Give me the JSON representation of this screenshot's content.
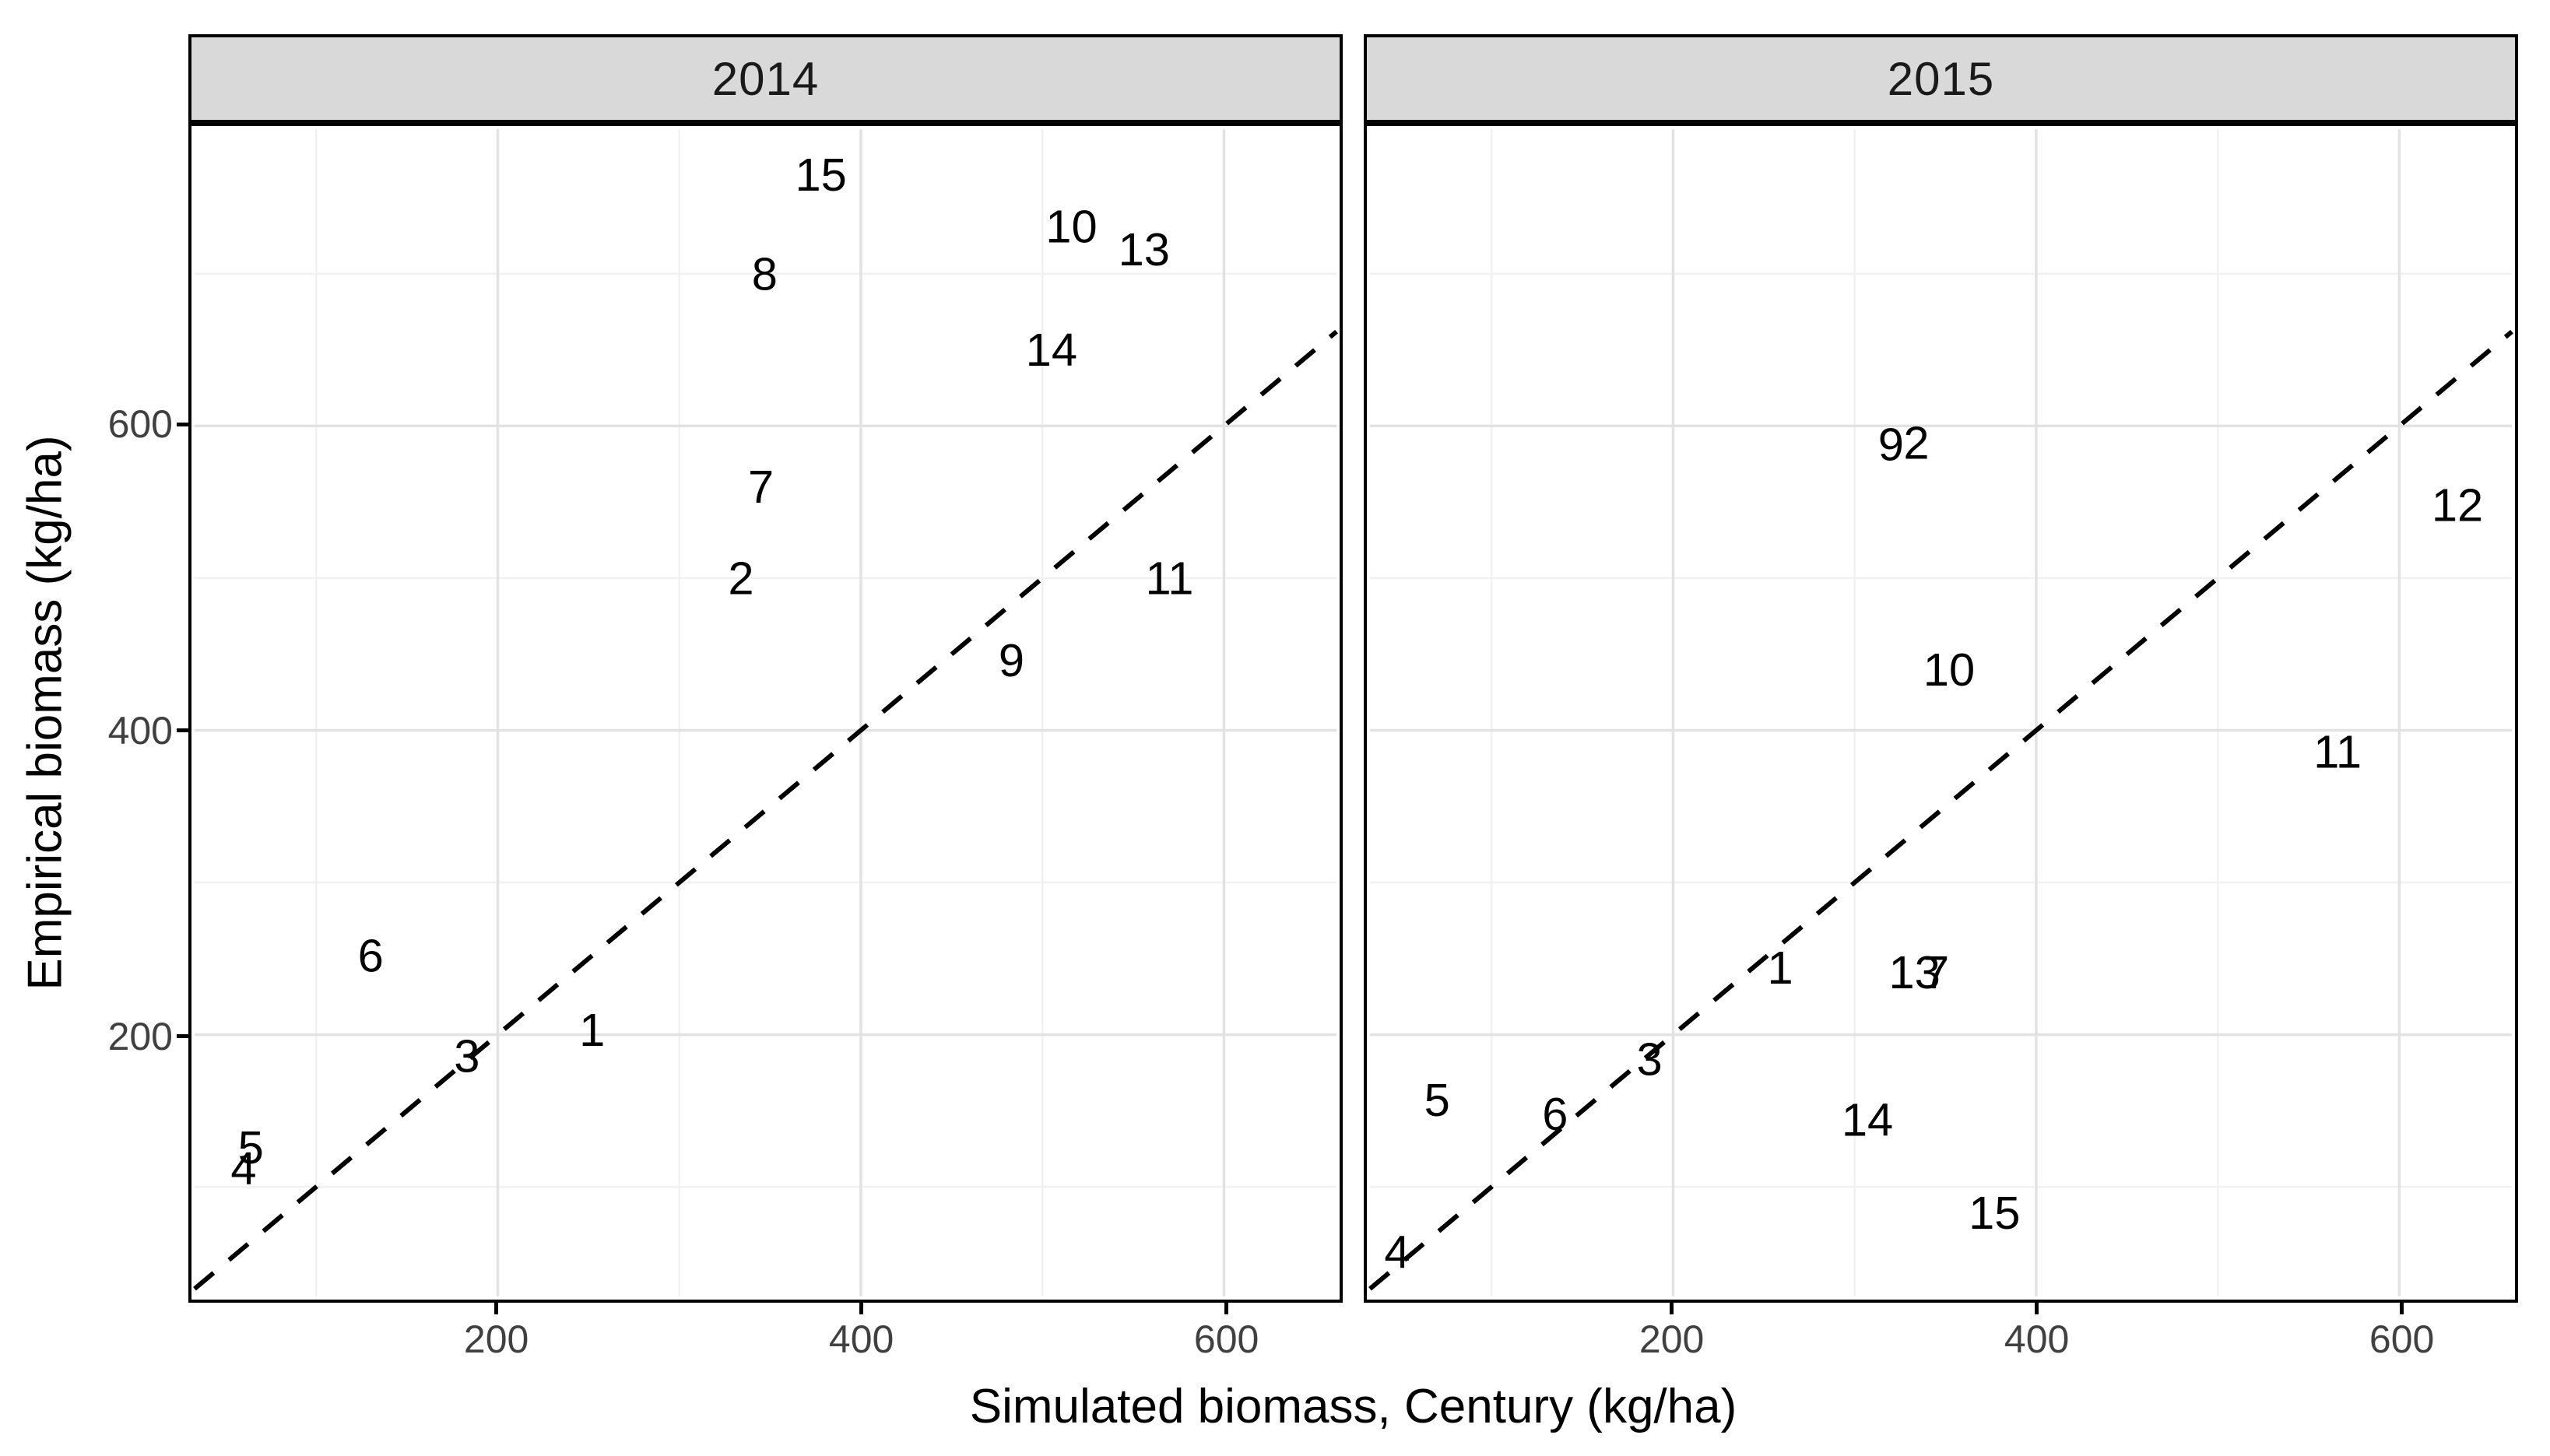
{
  "figure_title": "",
  "facet_labels": [
    "2014",
    "2015"
  ],
  "colors": {
    "background": "#FFFFFF",
    "panel_background": "#FFFFFF",
    "panel_border": "#000000",
    "facet_header_fill": "#D9D9D9",
    "grid_major": "#E2E2E2",
    "grid_minor": "#F1F1F1",
    "tick_label": "#404040",
    "axis_title": "#000000",
    "point_label": "#000000",
    "reference_line": "#000000"
  },
  "chart_data": [
    {
      "type": "scatter",
      "facet": "2014",
      "title": "2014",
      "xlabel": "Simulated biomass, Century (kg/ha)",
      "ylabel": "Empirical biomass (kg/ha)",
      "xlim": [
        33,
        662
      ],
      "ylim": [
        28,
        795
      ],
      "xticks": [
        200,
        400,
        600
      ],
      "yticks": [
        200,
        400,
        600
      ],
      "xticks_minor": [
        100,
        300,
        500
      ],
      "yticks_minor": [
        100,
        300,
        500,
        700
      ],
      "grid": true,
      "legend": "none",
      "reference_line": {
        "type": "identity y=x",
        "style": "dashed",
        "slope": 1,
        "intercept": 0
      },
      "point_marker": "site-number-text",
      "points": [
        {
          "label": "1",
          "x": 252,
          "y": 203
        },
        {
          "label": "2",
          "x": 334,
          "y": 500
        },
        {
          "label": "3",
          "x": 183,
          "y": 186
        },
        {
          "label": "4",
          "x": 60,
          "y": 112
        },
        {
          "label": "5",
          "x": 64,
          "y": 126
        },
        {
          "label": "6",
          "x": 130,
          "y": 252
        },
        {
          "label": "7",
          "x": 345,
          "y": 560
        },
        {
          "label": "8",
          "x": 347,
          "y": 700
        },
        {
          "label": "9",
          "x": 483,
          "y": 446
        },
        {
          "label": "10",
          "x": 516,
          "y": 731
        },
        {
          "label": "11",
          "x": 570,
          "y": 500
        },
        {
          "label": "13",
          "x": 556,
          "y": 716
        },
        {
          "label": "14",
          "x": 505,
          "y": 650
        },
        {
          "label": "15",
          "x": 378,
          "y": 765
        }
      ]
    },
    {
      "type": "scatter",
      "facet": "2015",
      "title": "2015",
      "xlabel": "Simulated biomass, Century (kg/ha)",
      "ylabel": "Empirical biomass (kg/ha)",
      "xlim": [
        33,
        662
      ],
      "ylim": [
        28,
        795
      ],
      "xticks": [
        200,
        400,
        600
      ],
      "yticks": [
        200,
        400,
        600
      ],
      "xticks_minor": [
        100,
        300,
        500
      ],
      "yticks_minor": [
        100,
        300,
        500,
        700
      ],
      "grid": true,
      "legend": "none",
      "reference_line": {
        "type": "identity y=x",
        "style": "dashed",
        "slope": 1,
        "intercept": 0
      },
      "point_marker": "site-number-text",
      "points": [
        {
          "label": "1",
          "x": 259,
          "y": 244
        },
        {
          "label": "2",
          "x": 334,
          "y": 589
        },
        {
          "label": "3",
          "x": 187,
          "y": 184
        },
        {
          "label": "4",
          "x": 48,
          "y": 57
        },
        {
          "label": "5",
          "x": 70,
          "y": 157
        },
        {
          "label": "6",
          "x": 135,
          "y": 148
        },
        {
          "label": "7",
          "x": 345,
          "y": 241
        },
        {
          "label": "9",
          "x": 320,
          "y": 588
        },
        {
          "label": "10",
          "x": 352,
          "y": 440
        },
        {
          "label": "11",
          "x": 566,
          "y": 386
        },
        {
          "label": "12",
          "x": 632,
          "y": 548
        },
        {
          "label": "13",
          "x": 333,
          "y": 241
        },
        {
          "label": "14",
          "x": 307,
          "y": 144
        },
        {
          "label": "15",
          "x": 377,
          "y": 83
        }
      ]
    }
  ]
}
